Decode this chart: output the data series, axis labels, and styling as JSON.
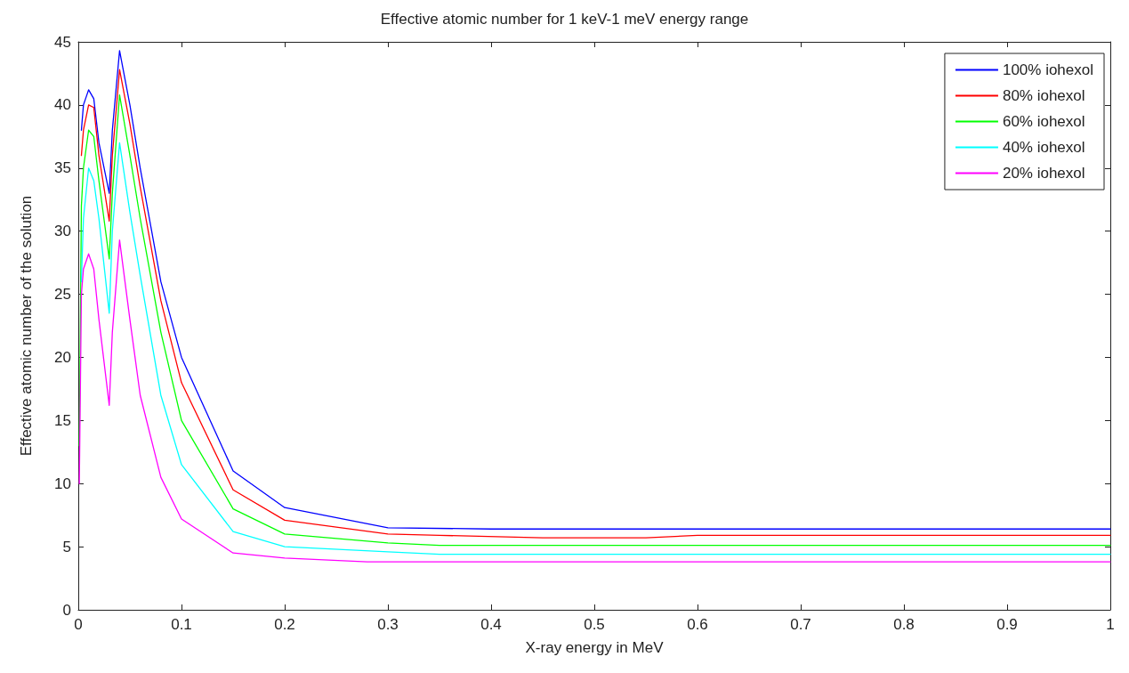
{
  "chart_data": {
    "type": "line",
    "title": "Effective atomic number for 1 keV-1 meV energy range",
    "xlabel": "X-ray energy in MeV",
    "ylabel": "Effective atomic number of the solution",
    "xlim": [
      0,
      1
    ],
    "xticks": [
      0,
      0.1,
      0.2,
      0.3,
      0.4,
      0.5,
      0.6,
      0.7,
      0.8,
      0.9,
      1
    ],
    "ylim": [
      0,
      45
    ],
    "yticks": [
      0,
      5,
      10,
      15,
      20,
      25,
      30,
      35,
      40,
      45
    ],
    "grid": false,
    "legend": "top right",
    "marker": "none",
    "line_style": "solid",
    "series": [
      {
        "name": "100% iohexol",
        "color": "#0000ff",
        "x": [
          0.003,
          0.005,
          0.01,
          0.015,
          0.02,
          0.03,
          0.033,
          0.04,
          0.05,
          0.06,
          0.08,
          0.1,
          0.15,
          0.2,
          0.3,
          0.4,
          0.5,
          0.6,
          0.8,
          1
        ],
        "values": [
          38,
          40,
          41.2,
          40.5,
          37,
          33,
          38,
          44.3,
          40,
          35,
          26,
          20,
          11,
          8.1,
          6.5,
          6.4,
          6.4,
          6.4,
          6.4,
          6.4
        ]
      },
      {
        "name": "80% iohexol",
        "color": "#ff0000",
        "x": [
          0.003,
          0.005,
          0.01,
          0.015,
          0.02,
          0.03,
          0.033,
          0.04,
          0.05,
          0.06,
          0.08,
          0.1,
          0.15,
          0.2,
          0.3,
          0.35,
          0.45,
          0.55,
          0.6,
          0.8,
          1
        ],
        "values": [
          36,
          38,
          40,
          39.8,
          36,
          30.8,
          36,
          42.8,
          38.5,
          33.5,
          24.5,
          18,
          9.5,
          7.1,
          6,
          5.9,
          5.7,
          5.7,
          5.9,
          5.9,
          5.9
        ]
      },
      {
        "name": "60% iohexol",
        "color": "#00ff00",
        "x": [
          0.001,
          0.003,
          0.005,
          0.01,
          0.015,
          0.02,
          0.03,
          0.033,
          0.04,
          0.05,
          0.06,
          0.08,
          0.1,
          0.15,
          0.2,
          0.3,
          0.35,
          0.6,
          0.8,
          1
        ],
        "values": [
          13,
          32,
          35,
          38,
          37.5,
          34,
          27.8,
          33,
          40.8,
          36,
          31,
          22,
          15,
          8,
          6,
          5.3,
          5.1,
          5.1,
          5.1,
          5.1
        ]
      },
      {
        "name": "40% iohexol",
        "color": "#00ffff",
        "x": [
          0.003,
          0.005,
          0.01,
          0.015,
          0.02,
          0.03,
          0.033,
          0.04,
          0.05,
          0.06,
          0.08,
          0.1,
          0.15,
          0.2,
          0.3,
          0.35,
          0.6,
          0.8,
          1
        ],
        "values": [
          26,
          31,
          35,
          34,
          31,
          23.5,
          30,
          37,
          31.5,
          26.5,
          17,
          11.5,
          6.2,
          5,
          4.6,
          4.4,
          4.4,
          4.4,
          4.4
        ]
      },
      {
        "name": "20% iohexol",
        "color": "#ff00ff",
        "x": [
          0.001,
          0.003,
          0.005,
          0.01,
          0.015,
          0.02,
          0.03,
          0.033,
          0.04,
          0.05,
          0.06,
          0.08,
          0.1,
          0.15,
          0.2,
          0.28,
          0.4,
          0.6,
          0.8,
          1
        ],
        "values": [
          10,
          25,
          27,
          28.2,
          27,
          23,
          16.2,
          22,
          29.3,
          23,
          17,
          10.5,
          7.2,
          4.5,
          4.1,
          3.8,
          3.8,
          3.8,
          3.8,
          3.8
        ]
      }
    ]
  }
}
